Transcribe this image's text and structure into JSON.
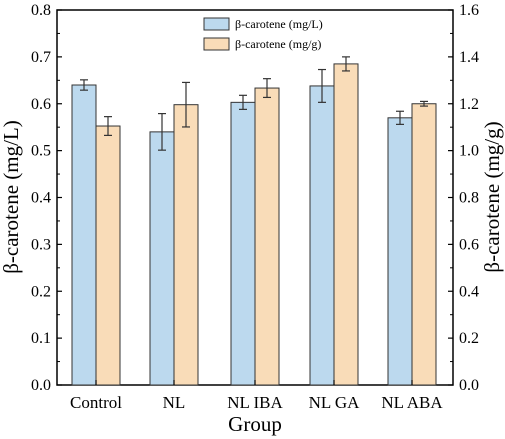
{
  "colors": {
    "series1_fill": "#bcd9ee",
    "series2_fill": "#f9dcb8",
    "stroke": "#333333"
  },
  "chart_data": {
    "type": "bar",
    "title": "",
    "xlabel": "Group",
    "ylabel": "β-carotene (mg/L)",
    "ylabel_right": "β-carotene (mg/g)",
    "ylim": [
      0,
      0.8
    ],
    "ylim_right": [
      0,
      1.6
    ],
    "yticks": [
      "0.0",
      "0.1",
      "0.2",
      "0.3",
      "0.4",
      "0.5",
      "0.6",
      "0.7",
      "0.8"
    ],
    "yticks_right": [
      "0.0",
      "0.2",
      "0.4",
      "0.6",
      "0.8",
      "1.0",
      "1.2",
      "1.4",
      "1.6"
    ],
    "categories": [
      "Control",
      "NL",
      "NL IBA",
      "NL GA",
      "NL ABA"
    ],
    "legend_position": "top-center",
    "series": [
      {
        "name": "β-carotene (mg/L)",
        "axis": "left",
        "values": [
          0.64,
          0.54,
          0.603,
          0.638,
          0.57
        ],
        "errors": [
          0.011,
          0.039,
          0.015,
          0.035,
          0.014
        ]
      },
      {
        "name": "β-carotene (mg/g)",
        "axis": "right",
        "values": [
          1.105,
          1.196,
          1.267,
          1.37,
          1.2
        ],
        "errors": [
          0.04,
          0.095,
          0.04,
          0.03,
          0.01
        ]
      }
    ]
  }
}
